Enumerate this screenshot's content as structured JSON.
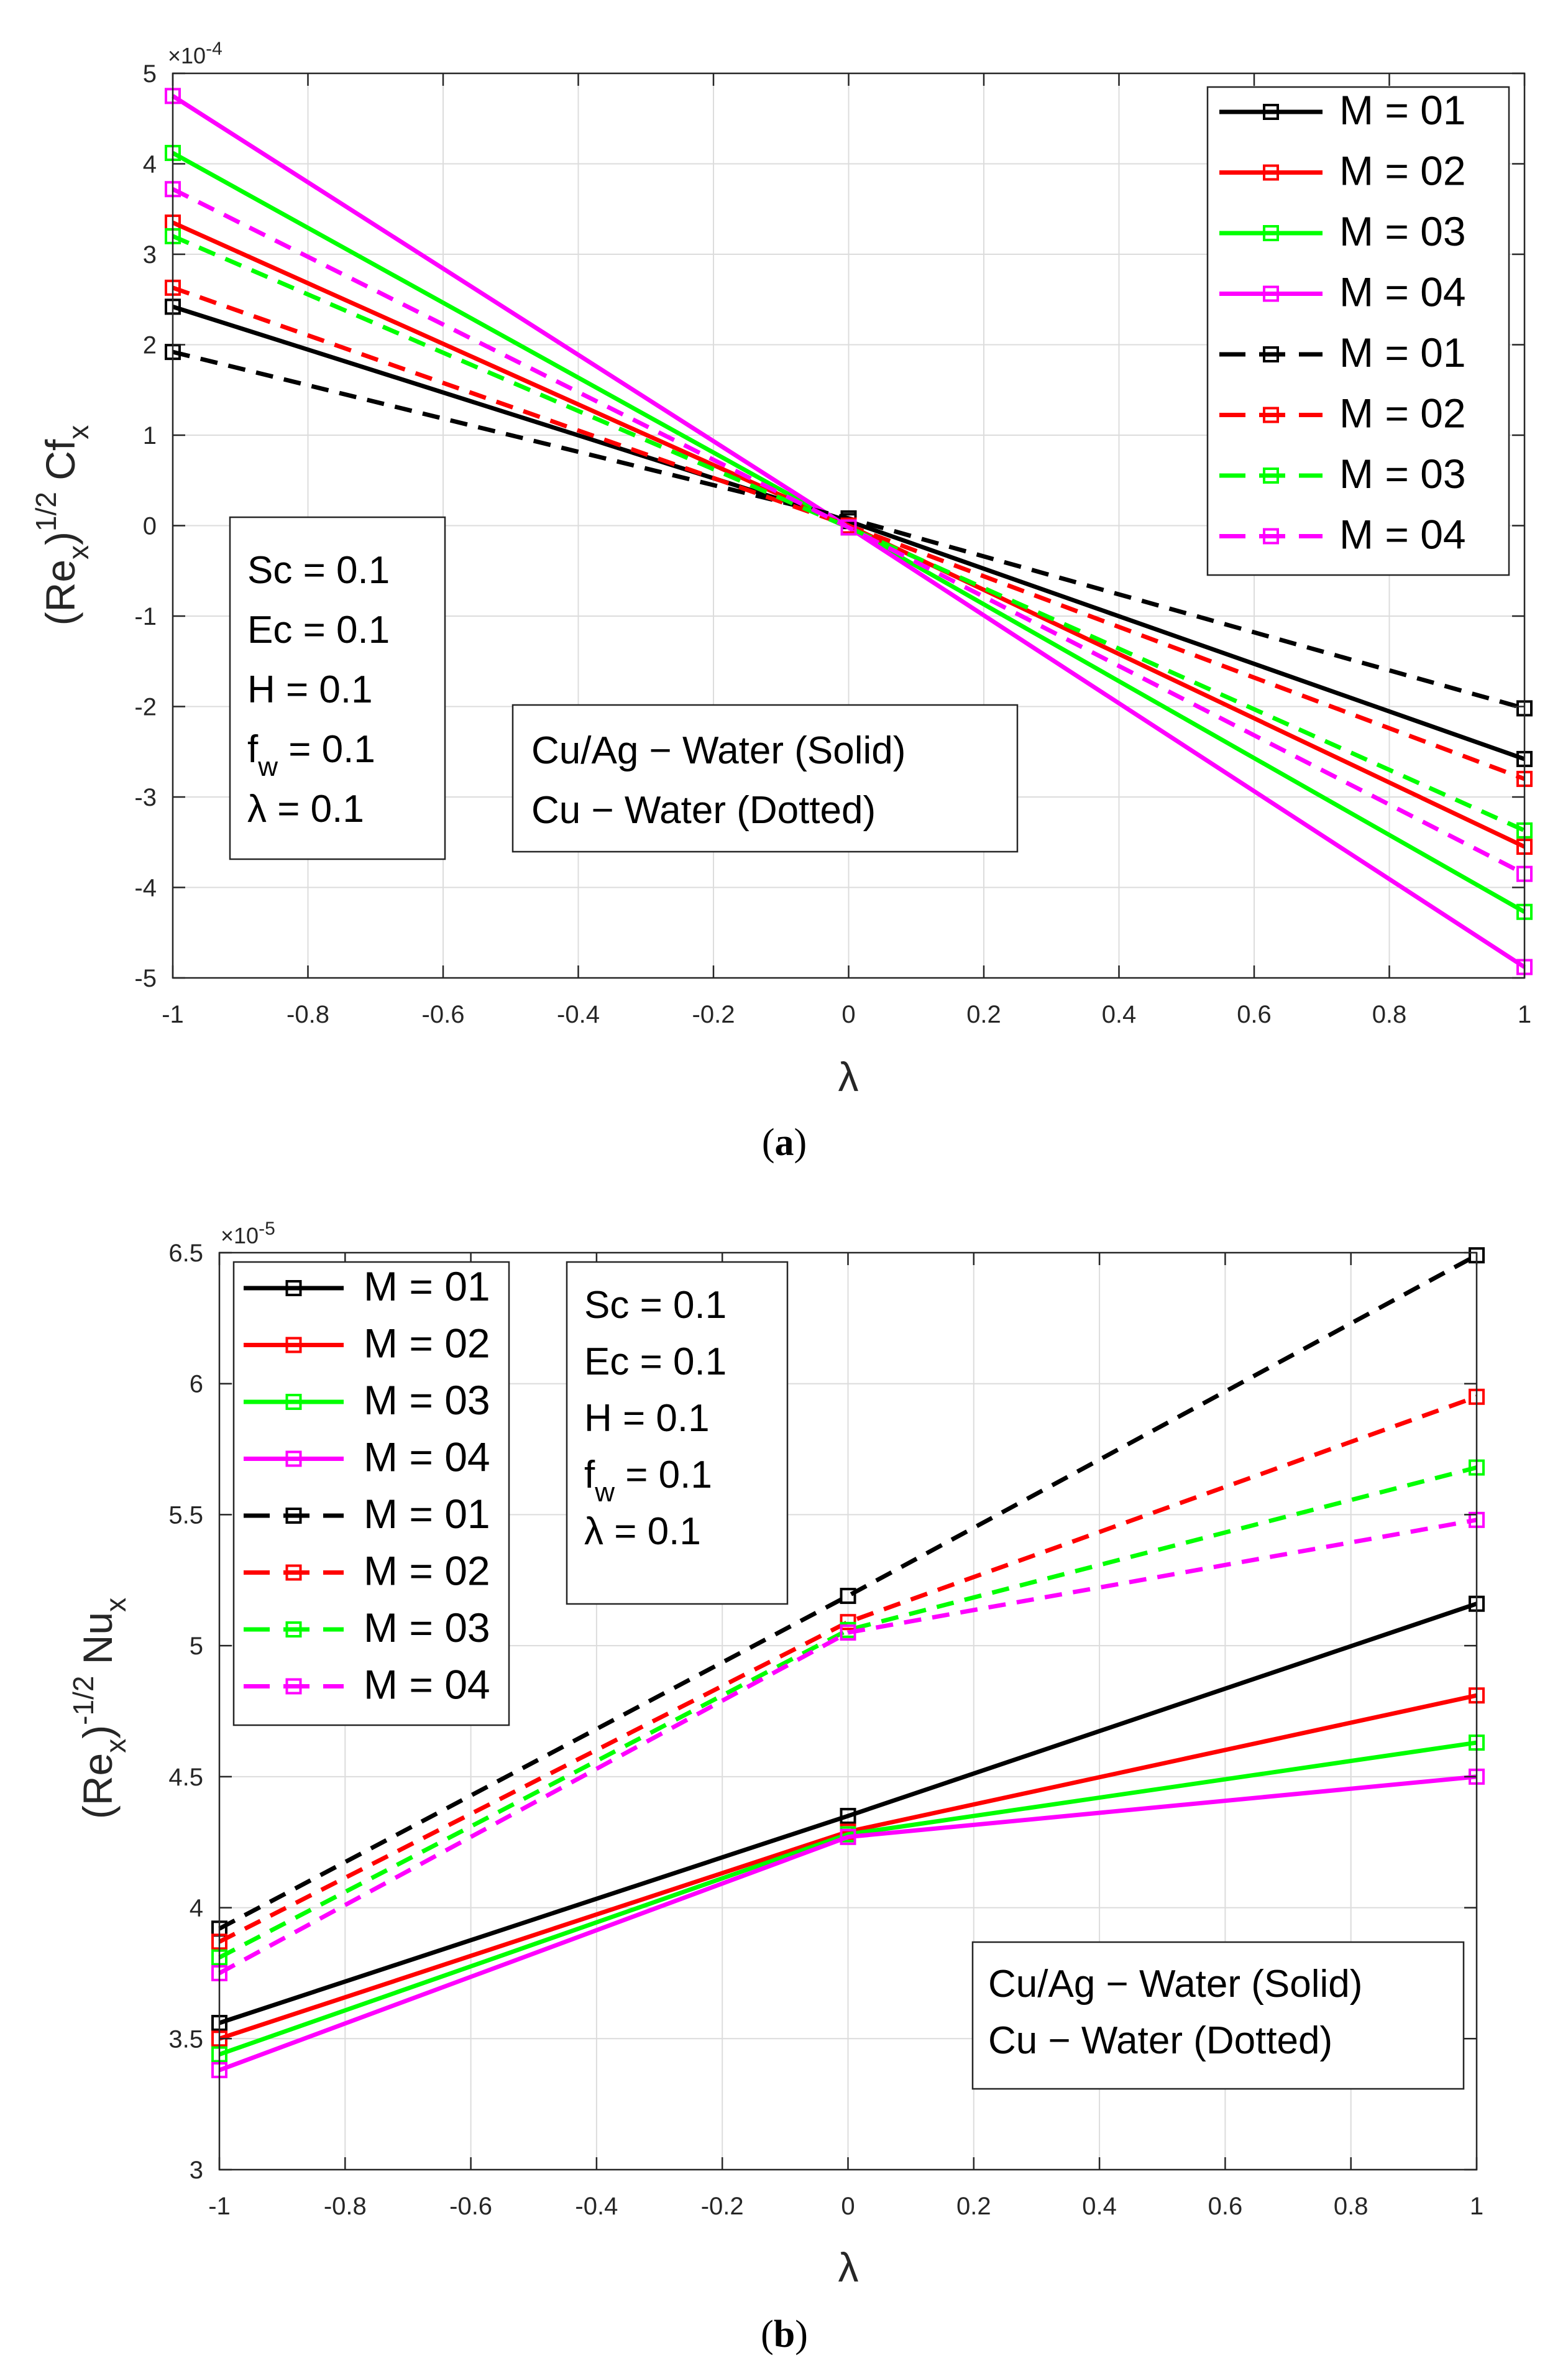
{
  "chart_data": [
    {
      "type": "line",
      "panel_label": "(a)",
      "panel_letter": "a",
      "xlabel": "λ",
      "ylabel": "(Re_x)^1/2 Cf_x",
      "ylabel_parts": {
        "main": "(Re",
        "sub1": "x",
        "close": ")",
        "sup": "1/2",
        "main2": "Cf",
        "sub2": "x"
      },
      "exponent_label": "×10",
      "exponent_power": "-4",
      "xlim": [
        -1,
        1
      ],
      "ylim": [
        -5,
        5
      ],
      "xticks": [
        -1,
        -0.8,
        -0.6,
        -0.4,
        -0.2,
        0,
        0.2,
        0.4,
        0.6,
        0.8,
        1
      ],
      "xtick_labels": [
        "-1",
        "-0.8",
        "-0.6",
        "-0.4",
        "-0.2",
        "0",
        "0.2",
        "0.4",
        "0.6",
        "0.8",
        "1"
      ],
      "yticks": [
        -5,
        -4,
        -3,
        -2,
        -1,
        0,
        1,
        2,
        3,
        4,
        5
      ],
      "ytick_labels": [
        "-5",
        "-4",
        "-3",
        "-2",
        "-1",
        "0",
        "1",
        "2",
        "3",
        "4",
        "5"
      ],
      "grid": true,
      "legend_position": "top-right",
      "x": [
        -1,
        0,
        1
      ],
      "series": [
        {
          "name": "M = 01",
          "color": "#000000",
          "style": "solid",
          "values": [
            2.42,
            0.05,
            -2.58
          ]
        },
        {
          "name": "M = 02",
          "color": "#ff0000",
          "style": "solid",
          "values": [
            3.35,
            0.0,
            -3.55
          ]
        },
        {
          "name": "M = 03",
          "color": "#00ff00",
          "style": "solid",
          "values": [
            4.12,
            -0.02,
            -4.27
          ]
        },
        {
          "name": "M = 04",
          "color": "#ff00ff",
          "style": "solid",
          "values": [
            4.75,
            -0.02,
            -4.88
          ]
        },
        {
          "name": "M = 01",
          "color": "#000000",
          "style": "dashed",
          "values": [
            1.92,
            0.08,
            -2.02
          ]
        },
        {
          "name": "M = 02",
          "color": "#ff0000",
          "style": "dashed",
          "values": [
            2.63,
            0.0,
            -2.8
          ]
        },
        {
          "name": "M = 03",
          "color": "#00ff00",
          "style": "dashed",
          "values": [
            3.2,
            -0.02,
            -3.37
          ]
        },
        {
          "name": "M = 04",
          "color": "#ff00ff",
          "style": "dashed",
          "values": [
            3.72,
            -0.02,
            -3.85
          ]
        }
      ],
      "params_box": {
        "position": "lower-left",
        "lines": [
          {
            "main": "Sc = 0.1"
          },
          {
            "main": "Ec = 0.1"
          },
          {
            "main": "H = 0.1"
          },
          {
            "main": "f",
            "sub": "w",
            "rest": " = 0.1"
          },
          {
            "main": "λ = 0.1"
          }
        ]
      },
      "info_box": {
        "position": "lower-center",
        "lines": [
          "Cu/Ag − Water (Solid)",
          "Cu − Water (Dotted)"
        ]
      }
    },
    {
      "type": "line",
      "panel_label": "(b)",
      "panel_letter": "b",
      "xlabel": "λ",
      "ylabel": "(Re_x)^-1/2 Nu_x",
      "ylabel_parts": {
        "main": "(Re",
        "sub1": "x",
        "close": ")",
        "sup": "-1/2",
        "main2": "Nu",
        "sub2": "x"
      },
      "exponent_label": "×10",
      "exponent_power": "-5",
      "xlim": [
        -1,
        1
      ],
      "ylim": [
        3,
        6.5
      ],
      "xticks": [
        -1,
        -0.8,
        -0.6,
        -0.4,
        -0.2,
        0,
        0.2,
        0.4,
        0.6,
        0.8,
        1
      ],
      "xtick_labels": [
        "-1",
        "-0.8",
        "-0.6",
        "-0.4",
        "-0.2",
        "0",
        "0.2",
        "0.4",
        "0.6",
        "0.8",
        "1"
      ],
      "yticks": [
        3,
        3.5,
        4,
        4.5,
        5,
        5.5,
        6,
        6.5
      ],
      "ytick_labels": [
        "3",
        "3.5",
        "4",
        "4.5",
        "5",
        "5.5",
        "6",
        "6.5"
      ],
      "grid": true,
      "legend_position": "top-left",
      "x": [
        -1,
        0,
        1
      ],
      "series": [
        {
          "name": "M = 01",
          "color": "#000000",
          "style": "solid",
          "values": [
            3.56,
            4.35,
            5.16
          ]
        },
        {
          "name": "M = 02",
          "color": "#ff0000",
          "style": "solid",
          "values": [
            3.5,
            4.29,
            4.81
          ]
        },
        {
          "name": "M = 03",
          "color": "#00ff00",
          "style": "solid",
          "values": [
            3.44,
            4.28,
            4.63
          ]
        },
        {
          "name": "M = 04",
          "color": "#ff00ff",
          "style": "solid",
          "values": [
            3.38,
            4.27,
            4.5
          ]
        },
        {
          "name": "M = 01",
          "color": "#000000",
          "style": "dashed",
          "values": [
            3.92,
            5.19,
            6.49
          ]
        },
        {
          "name": "M = 02",
          "color": "#ff0000",
          "style": "dashed",
          "values": [
            3.87,
            5.09,
            5.95
          ]
        },
        {
          "name": "M = 03",
          "color": "#00ff00",
          "style": "dashed",
          "values": [
            3.81,
            5.06,
            5.68
          ]
        },
        {
          "name": "M = 04",
          "color": "#ff00ff",
          "style": "dashed",
          "values": [
            3.75,
            5.05,
            5.48
          ]
        }
      ],
      "params_box": {
        "position": "top-center",
        "lines": [
          {
            "main": "Sc = 0.1"
          },
          {
            "main": "Ec = 0.1"
          },
          {
            "main": "H = 0.1"
          },
          {
            "main": "f",
            "sub": "w",
            "rest": " = 0.1"
          },
          {
            "main": "λ = 0.1"
          }
        ]
      },
      "info_box": {
        "position": "lower-right",
        "lines": [
          "Cu/Ag − Water (Solid)",
          "Cu − Water (Dotted)"
        ]
      }
    }
  ]
}
